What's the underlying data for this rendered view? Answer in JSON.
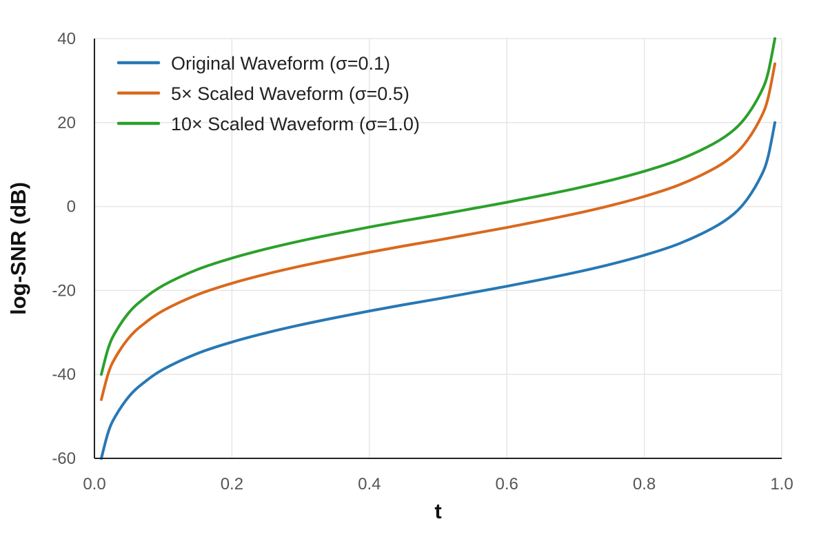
{
  "chart_data": {
    "type": "line",
    "title": "",
    "xlabel": "t",
    "ylabel": "log-SNR (dB)",
    "xlim": [
      0.0,
      1.0
    ],
    "ylim": [
      -60,
      40
    ],
    "xticks": [
      0.0,
      0.2,
      0.4,
      0.6,
      0.8,
      1.0
    ],
    "xtick_labels": [
      "0.0",
      "0.2",
      "0.4",
      "0.6",
      "0.8",
      "1.0"
    ],
    "yticks": [
      -60,
      -40,
      -20,
      0,
      20,
      40
    ],
    "ytick_labels": [
      "-60",
      "-40",
      "-20",
      "0",
      "20",
      "40"
    ],
    "grid": true,
    "legend_position": "top-left",
    "series": [
      {
        "name": "Original Waveform (σ=0.1)",
        "color": "#2878b5",
        "x": [
          0.01,
          0.02,
          0.03,
          0.05,
          0.07,
          0.1,
          0.15,
          0.2,
          0.25,
          0.3,
          0.35,
          0.4,
          0.45,
          0.5,
          0.55,
          0.6,
          0.65,
          0.7,
          0.75,
          0.8,
          0.85,
          0.9,
          0.93,
          0.95,
          0.97,
          0.98,
          0.99
        ],
        "y": [
          -60,
          -53.8,
          -50.1,
          -45.3,
          -42.2,
          -38.8,
          -35.0,
          -32.3,
          -30.1,
          -28.2,
          -26.5,
          -24.9,
          -23.4,
          -22.0,
          -20.5,
          -19.0,
          -17.4,
          -15.7,
          -13.8,
          -11.6,
          -8.9,
          -5.1,
          -1.8,
          1.8,
          7.3,
          11.8,
          20
        ]
      },
      {
        "name": "5× Scaled Waveform (σ=0.5)",
        "color": "#d9691e",
        "x": [
          0.01,
          0.02,
          0.03,
          0.05,
          0.07,
          0.1,
          0.15,
          0.2,
          0.25,
          0.3,
          0.35,
          0.4,
          0.45,
          0.5,
          0.55,
          0.6,
          0.65,
          0.7,
          0.75,
          0.8,
          0.85,
          0.9,
          0.93,
          0.95,
          0.97,
          0.98,
          0.99
        ],
        "y": [
          -46.0,
          -39.8,
          -36.1,
          -31.3,
          -28.2,
          -24.8,
          -21.0,
          -18.3,
          -16.1,
          -14.2,
          -12.5,
          -10.9,
          -9.4,
          -8.0,
          -6.5,
          -5.0,
          -3.4,
          -1.7,
          0.2,
          2.4,
          5.1,
          8.9,
          12.2,
          15.8,
          21.3,
          25.8,
          34.0
        ]
      },
      {
        "name": "10× Scaled Waveform (σ=1.0)",
        "color": "#2ca02c",
        "x": [
          0.01,
          0.02,
          0.03,
          0.05,
          0.07,
          0.1,
          0.15,
          0.2,
          0.25,
          0.3,
          0.35,
          0.4,
          0.45,
          0.5,
          0.55,
          0.6,
          0.65,
          0.7,
          0.75,
          0.8,
          0.85,
          0.9,
          0.93,
          0.95,
          0.97,
          0.98,
          0.99
        ],
        "y": [
          -40.0,
          -33.8,
          -30.1,
          -25.3,
          -22.2,
          -18.8,
          -15.0,
          -12.3,
          -10.1,
          -8.2,
          -6.5,
          -4.9,
          -3.4,
          -2.0,
          -0.5,
          1.0,
          2.6,
          4.3,
          6.2,
          8.4,
          11.1,
          14.9,
          18.2,
          21.8,
          27.3,
          31.8,
          40.0
        ]
      }
    ]
  }
}
